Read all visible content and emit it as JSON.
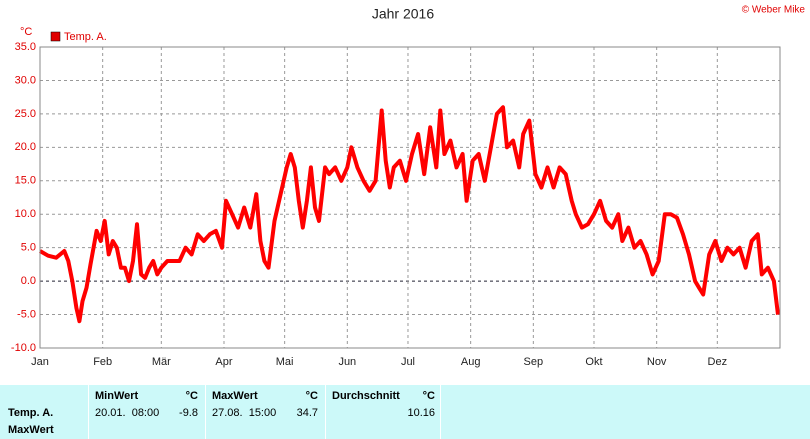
{
  "chart_data": {
    "type": "line",
    "title": "Jahr 2016",
    "credit": "© Weber Mike",
    "y_unit": "°C",
    "x": [
      0,
      4,
      8,
      12,
      14,
      16,
      18,
      19.5,
      21,
      23,
      25,
      28,
      30,
      32,
      34,
      36,
      38,
      40,
      42,
      44,
      46,
      48,
      50,
      52,
      54,
      56,
      58,
      60,
      63,
      66,
      69,
      72,
      75,
      78,
      81,
      84,
      87,
      90,
      92,
      95,
      98,
      101,
      104,
      107,
      109,
      111,
      113,
      116,
      119,
      122,
      124,
      126,
      128,
      130,
      132,
      134,
      136,
      138,
      141,
      143,
      146,
      149,
      152,
      154,
      157,
      160,
      163,
      166,
      169,
      171,
      173,
      175,
      178,
      181,
      184,
      187,
      190,
      193,
      196,
      198,
      200,
      203,
      206,
      209,
      211,
      214,
      217,
      220,
      223,
      226,
      229,
      231,
      234,
      237,
      239,
      242,
      245,
      248,
      251,
      254,
      257,
      260,
      263,
      265,
      268,
      271,
      274,
      277,
      280,
      283,
      286,
      288,
      291,
      294,
      297,
      300,
      303,
      306,
      309,
      312,
      315,
      318,
      321,
      324,
      326,
      328,
      331,
      334,
      337,
      340,
      343,
      346,
      349,
      352,
      355,
      357,
      360,
      363,
      365
    ],
    "series": [
      {
        "name": "Temp. A.",
        "color": "#ff0000",
        "values": [
          4.5,
          3.8,
          3.5,
          4.5,
          3,
          0,
          -4,
          -6,
          -3,
          -1,
          2.5,
          7.5,
          6,
          9,
          4,
          6,
          5,
          2,
          2,
          0,
          3,
          8.5,
          1,
          0.5,
          2,
          3,
          1,
          2,
          3,
          3,
          3,
          5,
          4,
          7,
          6,
          7,
          7.5,
          5,
          12,
          10,
          8,
          11,
          8,
          13,
          6,
          3,
          2,
          9,
          13,
          17,
          19,
          17,
          12,
          8,
          12,
          17,
          11,
          9,
          17,
          16,
          17,
          15,
          17,
          20,
          17,
          15,
          13.5,
          15,
          25.5,
          18,
          14,
          17,
          18,
          15,
          19,
          22,
          16,
          23,
          17,
          25.5,
          19,
          21,
          17,
          19,
          12,
          18,
          19,
          15,
          20,
          25,
          26,
          20,
          21,
          17,
          22,
          24,
          16,
          14,
          17,
          14,
          17,
          16,
          12,
          10,
          8,
          8.5,
          10,
          12,
          9,
          8,
          10,
          6,
          8,
          5,
          6,
          4,
          1,
          3,
          10,
          10,
          9.5,
          7,
          4,
          0,
          -1,
          -2,
          4,
          6,
          3,
          5,
          4,
          5,
          2,
          6,
          7,
          1,
          2,
          0,
          -5
        ]
      }
    ],
    "xlim": [
      0,
      366
    ],
    "xticks": [
      {
        "value": 0,
        "label": "Jan"
      },
      {
        "value": 31,
        "label": "Feb"
      },
      {
        "value": 60,
        "label": "Mär"
      },
      {
        "value": 91,
        "label": "Apr"
      },
      {
        "value": 121,
        "label": "Mai"
      },
      {
        "value": 152,
        "label": "Jun"
      },
      {
        "value": 182,
        "label": "Jul"
      },
      {
        "value": 213,
        "label": "Aug"
      },
      {
        "value": 244,
        "label": "Sep"
      },
      {
        "value": 274,
        "label": "Okt"
      },
      {
        "value": 305,
        "label": "Nov"
      },
      {
        "value": 335,
        "label": "Dez"
      }
    ],
    "ylim": [
      -10,
      35
    ],
    "yticks": [
      {
        "value": -10,
        "label": "-10.0"
      },
      {
        "value": -5,
        "label": "-5.0"
      },
      {
        "value": 0,
        "label": "0.0"
      },
      {
        "value": 5,
        "label": "5.0"
      },
      {
        "value": 10,
        "label": "10.0"
      },
      {
        "value": 15,
        "label": "15.0"
      },
      {
        "value": 20,
        "label": "20.0"
      },
      {
        "value": 25,
        "label": "25.0"
      },
      {
        "value": 30,
        "label": "30.0"
      },
      {
        "value": 35,
        "label": "35.0"
      }
    ],
    "grid": true
  },
  "table": {
    "row_labels": [
      "Temp. A.",
      "MaxWert"
    ],
    "columns": [
      {
        "name": "MinWert",
        "unit": "°C",
        "time": "20.01.  08:00",
        "value": "-9.8"
      },
      {
        "name": "MaxWert",
        "unit": "°C",
        "time": "27.08.  15:00",
        "value": "34.7"
      },
      {
        "name": "Durchschnitt",
        "unit": "°C",
        "value": "10.16"
      }
    ]
  }
}
